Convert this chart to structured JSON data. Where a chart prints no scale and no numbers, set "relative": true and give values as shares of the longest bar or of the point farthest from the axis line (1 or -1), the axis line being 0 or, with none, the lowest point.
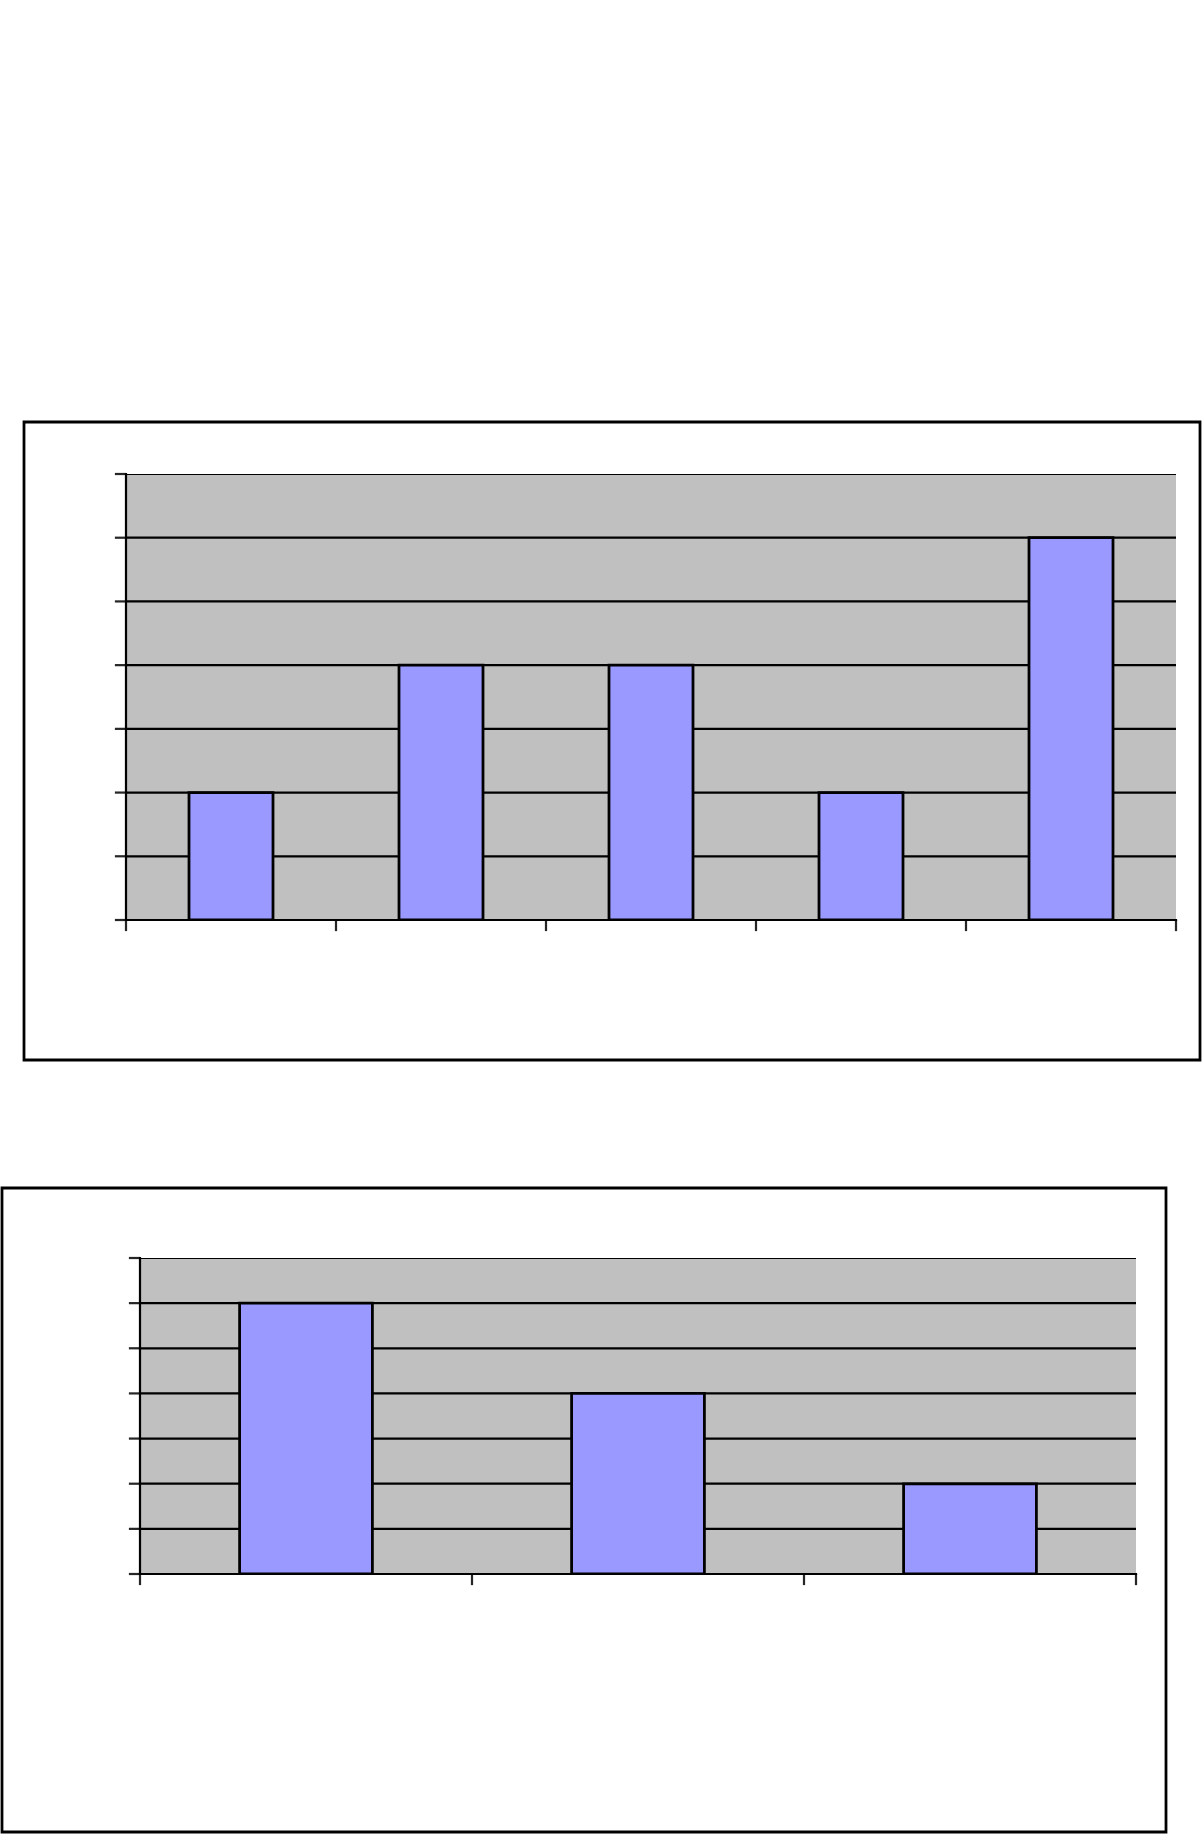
{
  "chart_data": [
    {
      "type": "bar",
      "relative": true,
      "categories": [
        null,
        null,
        null,
        null,
        null
      ],
      "values": [
        0.333,
        0.667,
        0.667,
        0.333,
        1
      ],
      "color": "#9999ff",
      "grid": "y",
      "tick_labels": false
    },
    {
      "type": "bar",
      "relative": true,
      "categories": [
        null,
        null,
        null
      ],
      "values": [
        1,
        0.667,
        0.333
      ],
      "color": "#9999ff",
      "grid": "y",
      "tick_labels": false
    }
  ]
}
